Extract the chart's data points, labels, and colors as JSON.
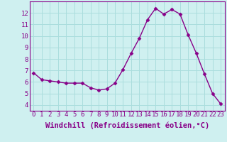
{
  "x": [
    0,
    1,
    2,
    3,
    4,
    5,
    6,
    7,
    8,
    9,
    10,
    11,
    12,
    13,
    14,
    15,
    16,
    17,
    18,
    19,
    20,
    21,
    22,
    23
  ],
  "y": [
    6.8,
    6.2,
    6.1,
    6.0,
    5.9,
    5.9,
    5.9,
    5.5,
    5.3,
    5.4,
    5.9,
    7.1,
    8.5,
    9.8,
    11.4,
    12.4,
    11.9,
    12.3,
    11.9,
    10.1,
    8.5,
    6.7,
    5.0,
    4.1
  ],
  "line_color": "#880088",
  "marker": "D",
  "marker_size": 2.5,
  "bg_color": "#cff0f0",
  "grid_color": "#aadddd",
  "xlabel": "Windchill (Refroidissement éolien,°C)",
  "ylim": [
    3.5,
    13.0
  ],
  "xlim": [
    -0.5,
    23.5
  ],
  "yticks": [
    4,
    5,
    6,
    7,
    8,
    9,
    10,
    11,
    12
  ],
  "xticks": [
    0,
    1,
    2,
    3,
    4,
    5,
    6,
    7,
    8,
    9,
    10,
    11,
    12,
    13,
    14,
    15,
    16,
    17,
    18,
    19,
    20,
    21,
    22,
    23
  ],
  "tick_fontsize": 6.5,
  "xlabel_fontsize": 7.5,
  "linewidth": 1.0,
  "spine_color": "#880088"
}
